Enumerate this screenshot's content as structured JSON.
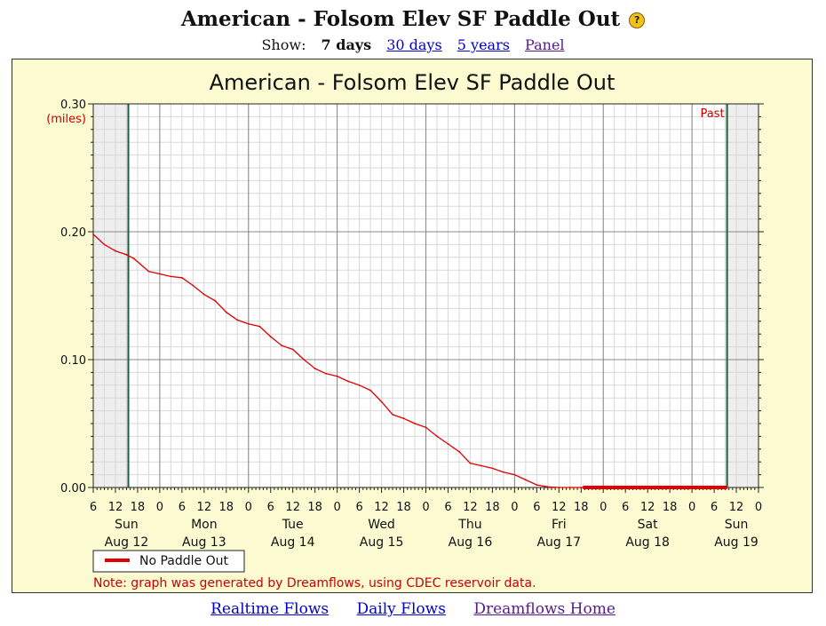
{
  "page": {
    "title": "American - Folsom Elev SF Paddle Out",
    "help_icon": "question-mark-icon",
    "show_label": "Show:",
    "show_options": [
      {
        "label": "7 days",
        "current": true
      },
      {
        "label": "30 days",
        "current": false
      },
      {
        "label": "5 years",
        "current": false
      },
      {
        "label": "Panel",
        "current": false
      }
    ]
  },
  "footer": {
    "links": [
      "Realtime Flows",
      "Daily Flows",
      "Dreamflows Home"
    ]
  },
  "colors": {
    "panel_bg": "#fbfad0",
    "series": "#e00000",
    "label_red": "#cc0000",
    "marker_line": "#1e5e3e",
    "shade": "#eeeeee"
  },
  "chart_data": {
    "type": "line",
    "title": "American - Folsom Elev SF Paddle Out",
    "ylabel": "(miles)",
    "ylim": [
      0,
      0.3
    ],
    "y_ticks": [
      {
        "value": 0.3,
        "label": "0.30"
      },
      {
        "value": 0.2,
        "label": "0.20"
      },
      {
        "value": 0.1,
        "label": "0.10"
      },
      {
        "value": 0.0,
        "label": "0.00"
      }
    ],
    "x_unit": "hours since Aug 12 00:00",
    "xlim": [
      6,
      186
    ],
    "hour_ticks": [
      {
        "h": 6,
        "label": "6"
      },
      {
        "h": 12,
        "label": "12"
      },
      {
        "h": 18,
        "label": "18"
      },
      {
        "h": 24,
        "label": "0"
      },
      {
        "h": 30,
        "label": "6"
      },
      {
        "h": 36,
        "label": "12"
      },
      {
        "h": 42,
        "label": "18"
      },
      {
        "h": 48,
        "label": "0"
      },
      {
        "h": 54,
        "label": "6"
      },
      {
        "h": 60,
        "label": "12"
      },
      {
        "h": 66,
        "label": "18"
      },
      {
        "h": 72,
        "label": "0"
      },
      {
        "h": 78,
        "label": "6"
      },
      {
        "h": 84,
        "label": "12"
      },
      {
        "h": 90,
        "label": "18"
      },
      {
        "h": 96,
        "label": "0"
      },
      {
        "h": 102,
        "label": "6"
      },
      {
        "h": 108,
        "label": "12"
      },
      {
        "h": 114,
        "label": "18"
      },
      {
        "h": 120,
        "label": "0"
      },
      {
        "h": 126,
        "label": "6"
      },
      {
        "h": 132,
        "label": "12"
      },
      {
        "h": 138,
        "label": "18"
      },
      {
        "h": 144,
        "label": "0"
      },
      {
        "h": 150,
        "label": "6"
      },
      {
        "h": 156,
        "label": "12"
      },
      {
        "h": 162,
        "label": "18"
      },
      {
        "h": 168,
        "label": "0"
      },
      {
        "h": 174,
        "label": "6"
      },
      {
        "h": 180,
        "label": "12"
      },
      {
        "h": 186,
        "label": "0"
      }
    ],
    "day_labels": [
      {
        "h": 15,
        "day": "Sun",
        "date": "Aug 12"
      },
      {
        "h": 36,
        "day": "Mon",
        "date": "Aug 13"
      },
      {
        "h": 60,
        "day": "Tue",
        "date": "Aug 14"
      },
      {
        "h": 84,
        "day": "Wed",
        "date": "Aug 15"
      },
      {
        "h": 108,
        "day": "Thu",
        "date": "Aug 16"
      },
      {
        "h": 132,
        "day": "Fri",
        "date": "Aug 17"
      },
      {
        "h": 156,
        "day": "Sat",
        "date": "Aug 18"
      },
      {
        "h": 180,
        "day": "Sun",
        "date": "Aug 19"
      }
    ],
    "shaded_ranges": [
      [
        6,
        15.5
      ],
      [
        177.5,
        186
      ]
    ],
    "marker_lines": [
      15.5,
      177.5
    ],
    "past_label": "Past",
    "series": [
      {
        "name": "No Paddle Out",
        "x": [
          6,
          9,
          12,
          15,
          17,
          21,
          24,
          27,
          30,
          33,
          36,
          39,
          42,
          45,
          48,
          51,
          54,
          57,
          60,
          63,
          66,
          69,
          72,
          75,
          78,
          81,
          84,
          87,
          90,
          93,
          96,
          99,
          102,
          105,
          108,
          111,
          114,
          117,
          120,
          123,
          126,
          129,
          132,
          135,
          138,
          138.5,
          177.5
        ],
        "y": [
          0.198,
          0.19,
          0.185,
          0.182,
          0.179,
          0.169,
          0.167,
          0.165,
          0.164,
          0.158,
          0.151,
          0.146,
          0.137,
          0.131,
          0.128,
          0.126,
          0.118,
          0.111,
          0.108,
          0.1,
          0.093,
          0.089,
          0.087,
          0.083,
          0.08,
          0.076,
          0.067,
          0.057,
          0.054,
          0.05,
          0.047,
          0.04,
          0.034,
          0.028,
          0.019,
          0.017,
          0.015,
          0.012,
          0.01,
          0.006,
          0.002,
          0.0005,
          0.0,
          0.0,
          0.0,
          0.0,
          0.0
        ]
      }
    ],
    "zero_segment": [
      138.5,
      177.5
    ],
    "legend": "No Paddle Out",
    "note": "Note: graph was generated by Dreamflows, using CDEC reservoir data."
  }
}
